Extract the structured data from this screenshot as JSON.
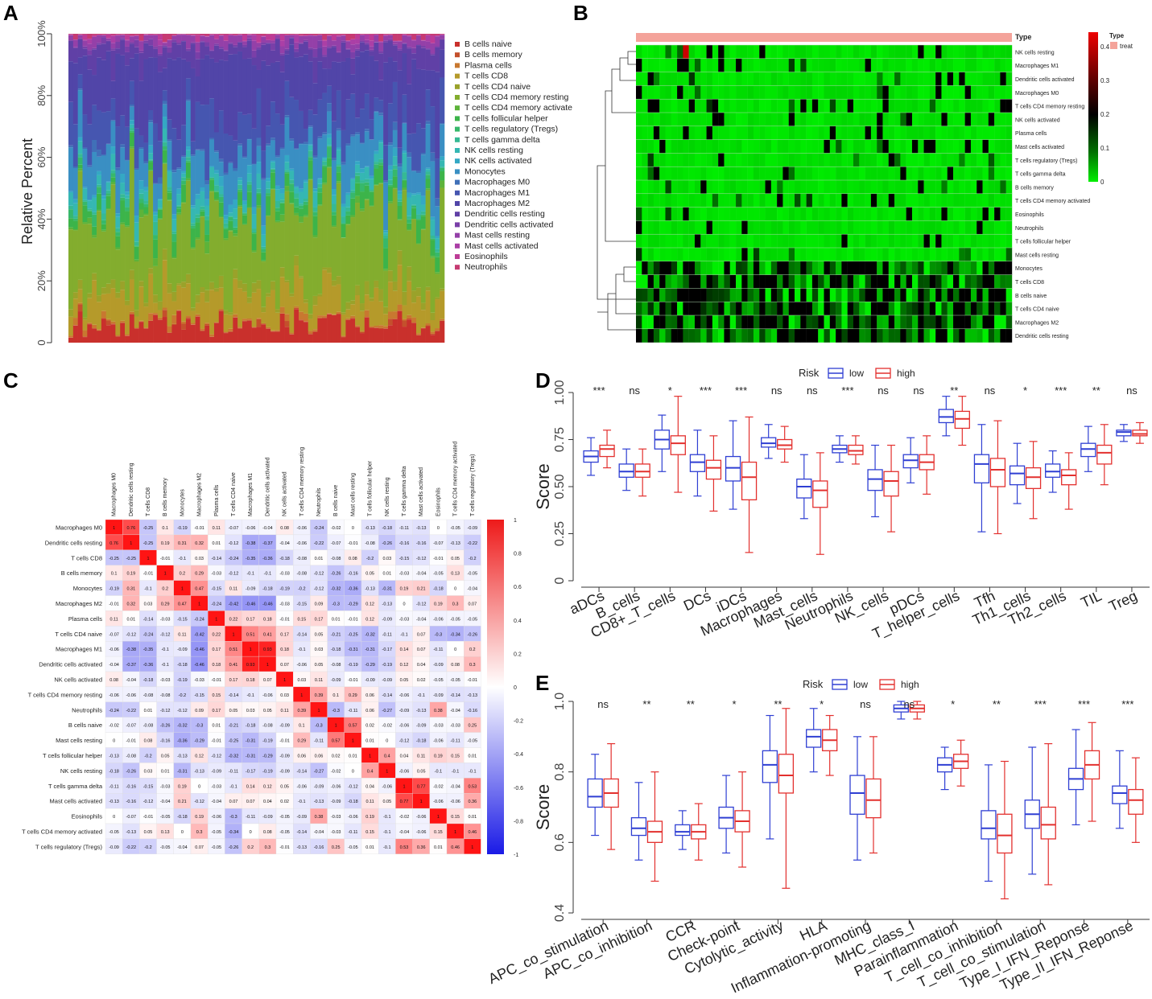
{
  "panel_labels": {
    "a": "A",
    "b": "B",
    "c": "C",
    "d": "D",
    "e": "E"
  },
  "cell_types": [
    "B cells naive",
    "B cells memory",
    "Plasma cells",
    "T cells CD8",
    "T cells CD4 naive",
    "T cells CD4 memory resting",
    "T cells CD4 memory activate",
    "T cells follicular helper",
    "T cells regulatory (Tregs)",
    "T cells gamma delta",
    "NK cells resting",
    "NK cells activated",
    "Monocytes",
    "Macrophages M0",
    "Macrophages M1",
    "Macrophages M2",
    "Dendritic cells resting",
    "Dendritic cells activated",
    "Mast cells resting",
    "Mast cells activated",
    "Eosinophils",
    "Neutrophils"
  ],
  "colors": {
    "legend": [
      "#c9302c",
      "#c4502c",
      "#c87830",
      "#b59a2a",
      "#9aa22a",
      "#83ad2e",
      "#5db33a",
      "#3cb44a",
      "#37b86b",
      "#36b994",
      "#35b7b3",
      "#34a8c4",
      "#3a8fc3",
      "#4070b8",
      "#4656b0",
      "#5145a8",
      "#6040a6",
      "#7a3fa8",
      "#9440a8",
      "#ab3fa6",
      "#bd3c96",
      "#c63b72"
    ],
    "up": "#e8373a",
    "down": "#3643d4",
    "green": "#00ee00",
    "dark": "#000000",
    "red": "#ee0000",
    "boxlow": "#2f3fd3",
    "boxhigh": "#e3302e"
  },
  "panel_a": {
    "chart_data": {
      "type": "bar",
      "stacked": true,
      "ylabel": "Relative Percent",
      "yticks": [
        "0",
        "20%",
        "40%",
        "60%",
        "80%",
        "100%"
      ],
      "ylim": [
        0,
        100
      ],
      "n_samples": 80,
      "mean_composition": [
        0.06,
        0.002,
        0.005,
        0.09,
        0.02,
        0.23,
        0.005,
        0.04,
        0.01,
        0.01,
        0.03,
        0.01,
        0.1,
        0.006,
        0.1,
        0.18,
        0.05,
        0.005,
        0.02,
        0.001,
        0.002,
        0.003
      ]
    }
  },
  "panel_b": {
    "type_header": "Type",
    "type_legend_title": "Type",
    "type_legend_value": "treat",
    "scale_ticks": [
      "0.4",
      "0.3",
      "0.2",
      "0.1",
      "0"
    ],
    "rows": [
      "NK cells resting",
      "Macrophages M1",
      "Dendritic cells activated",
      "Macrophages M0",
      "T cells CD4 memory resting",
      "NK cells activated",
      "Plasma cells",
      "Mast cells activated",
      "T cells regulatory (Tregs)",
      "T cells gamma delta",
      "B cells memory",
      "T cells CD4 memory activated",
      "Eosinophils",
      "Neutrophils",
      "T cells follicular helper",
      "Mast cells resting",
      "Monocytes",
      "T cells CD8",
      "B cells naive",
      "T cells CD4 naive",
      "Macrophages M2",
      "Dendritic cells resting"
    ]
  },
  "panel_c": {
    "chart_data": {
      "type": "heatmap",
      "labels": [
        "Macrophages M0",
        "Dendritic cells resting",
        "T cells CD8",
        "B cells memory",
        "Monocytes",
        "Macrophages M2",
        "Plasma cells",
        "T cells CD4 naive",
        "Macrophages M1",
        "Dendritic cells activated",
        "NK cells activated",
        "T cells CD4 memory resting",
        "Neutrophils",
        "B cells naive",
        "Mast cells resting",
        "T cells follicular helper",
        "NK cells resting",
        "T cells gamma delta",
        "Mast cells activated",
        "Eosinophils",
        "T cells CD4 memory activated",
        "T cells regulatory (Tregs)"
      ],
      "matrix": [
        [
          1,
          0.76,
          -0.25,
          0.1,
          -0.19,
          -0.01,
          0.11,
          -0.07,
          -0.06,
          -0.04,
          0.08,
          -0.06,
          -0.24,
          -0.02,
          0,
          -0.13,
          -0.18,
          -0.11,
          -0.13,
          0,
          -0.05,
          -0.09
        ],
        [
          0.76,
          1,
          -0.25,
          0.19,
          0.31,
          0.32,
          0.01,
          -0.12,
          -0.38,
          -0.37,
          -0.04,
          -0.06,
          -0.22,
          -0.07,
          -0.01,
          -0.08,
          -0.26,
          -0.16,
          -0.16,
          -0.07,
          -0.13,
          -0.22
        ],
        [
          -0.25,
          -0.25,
          1,
          -0.01,
          -0.1,
          0.03,
          -0.14,
          -0.24,
          -0.35,
          -0.36,
          -0.18,
          -0.08,
          0.01,
          -0.08,
          0.08,
          -0.2,
          0.03,
          -0.15,
          -0.12,
          -0.01,
          0.05,
          -0.2
        ],
        [
          0.1,
          0.19,
          -0.01,
          1,
          0.2,
          0.29,
          -0.03,
          -0.12,
          -0.1,
          -0.1,
          -0.03,
          -0.08,
          -0.12,
          -0.26,
          -0.16,
          0.05,
          0.01,
          -0.03,
          -0.04,
          -0.05,
          0.13,
          -0.05
        ],
        [
          -0.19,
          0.31,
          -0.1,
          0.2,
          1,
          0.47,
          -0.15,
          0.11,
          -0.09,
          -0.18,
          -0.19,
          -0.2,
          -0.12,
          -0.32,
          -0.36,
          -0.13,
          -0.31,
          0.19,
          0.21,
          -0.18,
          0,
          -0.04
        ],
        [
          -0.01,
          0.32,
          0.03,
          0.29,
          0.47,
          1,
          -0.24,
          -0.42,
          -0.46,
          -0.46,
          -0.03,
          -0.15,
          0.09,
          -0.3,
          -0.29,
          0.12,
          -0.13,
          0,
          -0.12,
          0.19,
          0.3,
          0.07
        ],
        [
          0.11,
          0.01,
          -0.14,
          -0.03,
          -0.15,
          -0.24,
          1,
          0.22,
          0.17,
          0.18,
          -0.01,
          0.15,
          0.17,
          0.01,
          -0.01,
          0.12,
          -0.09,
          -0.03,
          -0.04,
          -0.06,
          -0.05,
          -0.05
        ],
        [
          -0.07,
          -0.12,
          -0.24,
          -0.12,
          0.11,
          -0.42,
          0.22,
          1,
          0.51,
          0.41,
          0.17,
          -0.14,
          0.05,
          -0.21,
          -0.25,
          -0.32,
          -0.11,
          -0.1,
          0.07,
          -0.3,
          -0.34,
          -0.26
        ],
        [
          -0.06,
          -0.38,
          -0.35,
          -0.1,
          -0.09,
          -0.46,
          0.17,
          0.51,
          1,
          0.93,
          0.18,
          -0.1,
          0.03,
          -0.18,
          -0.31,
          -0.31,
          -0.17,
          0.14,
          0.07,
          -0.11,
          0,
          0.2
        ],
        [
          -0.04,
          -0.37,
          -0.36,
          -0.1,
          -0.18,
          -0.46,
          0.18,
          0.41,
          0.93,
          1,
          0.07,
          -0.06,
          0.05,
          -0.08,
          -0.19,
          -0.29,
          -0.19,
          0.12,
          0.04,
          -0.09,
          0.08,
          0.3
        ],
        [
          0.08,
          -0.04,
          -0.18,
          -0.03,
          -0.19,
          -0.03,
          -0.01,
          0.17,
          0.18,
          0.07,
          1,
          0.03,
          0.11,
          -0.09,
          -0.01,
          -0.09,
          -0.09,
          0.05,
          0.02,
          -0.05,
          -0.05,
          -0.01
        ],
        [
          -0.06,
          -0.06,
          -0.08,
          -0.08,
          -0.2,
          -0.15,
          0.15,
          -0.14,
          -0.1,
          -0.06,
          0.03,
          1,
          0.39,
          0.1,
          0.29,
          0.06,
          -0.14,
          -0.06,
          -0.1,
          -0.09,
          -0.14,
          -0.13
        ],
        [
          -0.24,
          -0.22,
          0.01,
          -0.12,
          -0.12,
          0.09,
          0.17,
          0.05,
          0.03,
          0.05,
          0.11,
          0.39,
          1,
          -0.3,
          -0.11,
          0.06,
          -0.27,
          -0.09,
          -0.13,
          0.38,
          -0.04,
          -0.16
        ],
        [
          -0.02,
          -0.07,
          -0.08,
          -0.26,
          -0.32,
          -0.3,
          0.01,
          -0.21,
          -0.18,
          -0.08,
          -0.09,
          0.1,
          -0.3,
          1,
          0.57,
          0.02,
          -0.02,
          -0.06,
          -0.09,
          -0.03,
          -0.03,
          0.25
        ],
        [
          0,
          -0.01,
          0.08,
          -0.16,
          -0.36,
          -0.29,
          -0.01,
          -0.25,
          -0.31,
          -0.19,
          -0.01,
          0.29,
          -0.11,
          0.57,
          1,
          0.01,
          0,
          -0.12,
          -0.18,
          -0.06,
          -0.11,
          -0.05
        ],
        [
          -0.13,
          -0.08,
          -0.2,
          0.05,
          -0.13,
          0.12,
          -0.12,
          -0.32,
          -0.31,
          -0.29,
          -0.09,
          0.06,
          0.06,
          0.02,
          0.01,
          1,
          0.4,
          0.04,
          0.11,
          0.19,
          0.15,
          0.01
        ],
        [
          -0.18,
          -0.26,
          0.03,
          0.01,
          -0.31,
          -0.13,
          -0.09,
          -0.11,
          -0.17,
          -0.19,
          -0.09,
          -0.14,
          -0.27,
          -0.02,
          0,
          0.4,
          1,
          -0.06,
          0.05,
          -0.1,
          -0.1,
          -0.1
        ],
        [
          -0.11,
          -0.16,
          -0.15,
          -0.03,
          0.19,
          0,
          -0.03,
          -0.1,
          0.14,
          0.12,
          0.05,
          -0.06,
          -0.09,
          -0.06,
          -0.12,
          0.04,
          -0.06,
          1,
          0.77,
          -0.02,
          -0.04,
          0.53
        ],
        [
          -0.13,
          -0.16,
          -0.12,
          -0.04,
          0.21,
          -0.12,
          -0.04,
          0.07,
          0.07,
          0.04,
          0.02,
          -0.1,
          -0.13,
          -0.09,
          -0.18,
          0.11,
          0.05,
          0.77,
          1,
          -0.06,
          -0.06,
          0.36
        ],
        [
          0,
          -0.07,
          -0.01,
          -0.05,
          -0.18,
          0.19,
          -0.06,
          -0.3,
          -0.11,
          -0.09,
          -0.05,
          -0.09,
          0.38,
          -0.03,
          -0.06,
          0.19,
          -0.1,
          -0.02,
          -0.06,
          1,
          0.15,
          0.01
        ],
        [
          -0.05,
          -0.13,
          0.05,
          0.13,
          0,
          0.3,
          -0.05,
          -0.34,
          0,
          0.08,
          -0.05,
          -0.14,
          -0.04,
          -0.03,
          -0.11,
          0.15,
          -0.1,
          -0.04,
          -0.06,
          0.15,
          1,
          0.46
        ],
        [
          -0.09,
          -0.22,
          -0.2,
          -0.05,
          -0.04,
          0.07,
          -0.05,
          -0.26,
          0.2,
          0.3,
          -0.01,
          -0.13,
          -0.16,
          0.25,
          -0.05,
          0.01,
          -0.1,
          0.53,
          0.36,
          0.01,
          0.46,
          1
        ]
      ],
      "scale": [
        "1",
        "0.8",
        "0.6",
        "0.4",
        "0.2",
        "0",
        "-0.2",
        "-0.4",
        "-0.6",
        "-0.8",
        "-1"
      ]
    }
  },
  "panel_d": {
    "legend_title": "Risk",
    "low": "low",
    "high": "high",
    "ylabel": "Score",
    "chart_data": {
      "type": "box",
      "ylim": [
        0,
        1
      ],
      "yticks": [
        "0",
        "0.25",
        "0.50",
        "0.75",
        "1.00"
      ],
      "categories": [
        "aDCs",
        "B_cells",
        "CD8+_T_cells",
        "DCs",
        "iDCs",
        "Macrophages",
        "Mast_cells",
        "Neutrophils",
        "NK_cells",
        "pDCs",
        "T_helper_cells",
        "Tfh",
        "Th1_cells",
        "Th2_cells",
        "TIL",
        "Treg"
      ],
      "sig": [
        "***",
        "ns",
        "*",
        "***",
        "***",
        "ns",
        "ns",
        "***",
        "ns",
        "ns",
        "**",
        "ns",
        "*",
        "***",
        "**",
        "ns"
      ],
      "low": [
        [
          0.63,
          0.66,
          0.69,
          0.56,
          0.76
        ],
        [
          0.55,
          0.58,
          0.62,
          0.48,
          0.7
        ],
        [
          0.7,
          0.75,
          0.8,
          0.58,
          0.88
        ],
        [
          0.58,
          0.63,
          0.67,
          0.45,
          0.8
        ],
        [
          0.53,
          0.6,
          0.66,
          0.38,
          0.85
        ],
        [
          0.71,
          0.73,
          0.76,
          0.65,
          0.83
        ],
        [
          0.44,
          0.5,
          0.54,
          0.33,
          0.67
        ],
        [
          0.68,
          0.7,
          0.72,
          0.63,
          0.77
        ],
        [
          0.48,
          0.54,
          0.59,
          0.34,
          0.72
        ],
        [
          0.6,
          0.64,
          0.67,
          0.52,
          0.76
        ],
        [
          0.84,
          0.87,
          0.91,
          0.77,
          0.98
        ],
        [
          0.52,
          0.62,
          0.67,
          0.26,
          0.83
        ],
        [
          0.51,
          0.57,
          0.61,
          0.41,
          0.73
        ],
        [
          0.55,
          0.58,
          0.62,
          0.47,
          0.69
        ],
        [
          0.66,
          0.7,
          0.73,
          0.58,
          0.82
        ],
        [
          0.77,
          0.79,
          0.8,
          0.74,
          0.83
        ]
      ],
      "high": [
        [
          0.66,
          0.7,
          0.72,
          0.6,
          0.8
        ],
        [
          0.55,
          0.58,
          0.62,
          0.45,
          0.7
        ],
        [
          0.67,
          0.73,
          0.77,
          0.47,
          0.98
        ],
        [
          0.54,
          0.6,
          0.64,
          0.37,
          0.77
        ],
        [
          0.43,
          0.55,
          0.63,
          0.15,
          0.87
        ],
        [
          0.7,
          0.72,
          0.75,
          0.63,
          0.82
        ],
        [
          0.39,
          0.48,
          0.53,
          0.14,
          0.68
        ],
        [
          0.67,
          0.69,
          0.72,
          0.62,
          0.77
        ],
        [
          0.45,
          0.53,
          0.58,
          0.26,
          0.72
        ],
        [
          0.59,
          0.63,
          0.67,
          0.46,
          0.77
        ],
        [
          0.81,
          0.86,
          0.9,
          0.72,
          0.98
        ],
        [
          0.5,
          0.59,
          0.65,
          0.25,
          0.85
        ],
        [
          0.49,
          0.55,
          0.6,
          0.33,
          0.74
        ],
        [
          0.51,
          0.56,
          0.59,
          0.38,
          0.68
        ],
        [
          0.62,
          0.68,
          0.72,
          0.51,
          0.83
        ],
        [
          0.77,
          0.78,
          0.8,
          0.73,
          0.84
        ]
      ]
    }
  },
  "panel_e": {
    "legend_title": "Risk",
    "low": "low",
    "high": "high",
    "ylabel": "Score",
    "chart_data": {
      "type": "box",
      "ylim": [
        0.4,
        1
      ],
      "yticks": [
        "0.4",
        "0.6",
        "0.8",
        "1.0"
      ],
      "categories": [
        "APC_co_stimulation",
        "APC_co_inhibition",
        "CCR",
        "Check-point",
        "Cytolytic_activity",
        "HLA",
        "Inflammation-promoting",
        "MHC_class_I",
        "Parainflammation",
        "T_cell_co_inhibition",
        "T_cell_co_stimulation",
        "Type_I_IFN_Reponse",
        "Type_II_IFN_Reponse"
      ],
      "sig": [
        "ns",
        "**",
        "**",
        "*",
        "**",
        "*",
        "ns",
        "ns",
        "*",
        "**",
        "***",
        "***",
        "***"
      ],
      "low": [
        [
          0.7,
          0.73,
          0.78,
          0.62,
          0.85
        ],
        [
          0.62,
          0.64,
          0.67,
          0.55,
          0.77
        ],
        [
          0.62,
          0.63,
          0.65,
          0.58,
          0.69
        ],
        [
          0.64,
          0.67,
          0.7,
          0.57,
          0.79
        ],
        [
          0.77,
          0.82,
          0.86,
          0.61,
          0.96
        ],
        [
          0.87,
          0.9,
          0.92,
          0.8,
          0.98
        ],
        [
          0.68,
          0.74,
          0.79,
          0.55,
          0.9
        ],
        [
          0.97,
          0.98,
          0.99,
          0.95,
          1.0
        ],
        [
          0.8,
          0.82,
          0.84,
          0.75,
          0.87
        ],
        [
          0.61,
          0.64,
          0.69,
          0.49,
          0.82
        ],
        [
          0.64,
          0.68,
          0.72,
          0.51,
          0.87
        ],
        [
          0.75,
          0.78,
          0.81,
          0.65,
          0.92
        ],
        [
          0.71,
          0.74,
          0.76,
          0.64,
          0.86
        ]
      ],
      "high": [
        [
          0.7,
          0.74,
          0.78,
          0.58,
          0.88
        ],
        [
          0.6,
          0.63,
          0.66,
          0.49,
          0.8
        ],
        [
          0.61,
          0.63,
          0.65,
          0.55,
          0.71
        ],
        [
          0.63,
          0.66,
          0.69,
          0.53,
          0.8
        ],
        [
          0.74,
          0.79,
          0.85,
          0.47,
          0.98
        ],
        [
          0.86,
          0.89,
          0.92,
          0.79,
          0.96
        ],
        [
          0.67,
          0.72,
          0.78,
          0.57,
          0.9
        ],
        [
          0.97,
          0.98,
          0.99,
          0.95,
          1.0
        ],
        [
          0.81,
          0.83,
          0.85,
          0.76,
          0.89
        ],
        [
          0.57,
          0.62,
          0.68,
          0.44,
          0.83
        ],
        [
          0.61,
          0.65,
          0.7,
          0.48,
          0.88
        ],
        [
          0.78,
          0.82,
          0.86,
          0.66,
          0.94
        ],
        [
          0.68,
          0.72,
          0.75,
          0.6,
          0.84
        ]
      ]
    }
  }
}
